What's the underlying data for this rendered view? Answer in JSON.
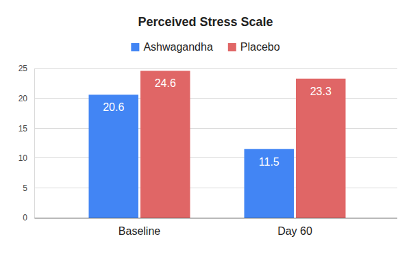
{
  "chart_data": {
    "type": "bar",
    "title": "Perceived Stress Scale",
    "categories": [
      "Baseline",
      "Day 60"
    ],
    "series": [
      {
        "name": "Ashwagandha",
        "color": "#4285f4",
        "values": [
          20.6,
          11.5
        ]
      },
      {
        "name": "Placebo",
        "color": "#e06666",
        "values": [
          24.6,
          23.3
        ]
      }
    ],
    "ylim": [
      0,
      25
    ],
    "yticks": [
      0,
      5,
      10,
      15,
      20,
      25
    ],
    "grid": true,
    "legend": "top",
    "data_labels": true
  }
}
